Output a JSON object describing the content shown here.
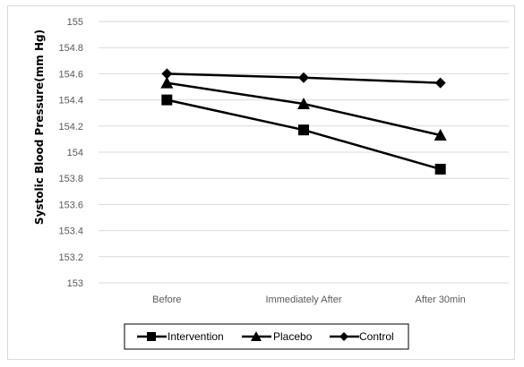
{
  "chart_data": {
    "type": "line",
    "title": "",
    "xlabel": "",
    "ylabel": "Systolic Blood Pressure(mm Hg)",
    "categories": [
      "Before",
      "Immediately After",
      "After 30min"
    ],
    "ylim": [
      153,
      155
    ],
    "yticks": [
      "155",
      "154.8",
      "154.6",
      "154.4",
      "154.2",
      "154",
      "153.8",
      "153.6",
      "153.4",
      "153.2",
      "153"
    ],
    "grid": true,
    "legend_position": "bottom",
    "series": [
      {
        "name": "Intervention",
        "marker": "square",
        "values": [
          154.4,
          154.17,
          153.87
        ]
      },
      {
        "name": "Placebo",
        "marker": "triangle",
        "values": [
          154.53,
          154.37,
          154.13
        ]
      },
      {
        "name": "Control",
        "marker": "diamond",
        "values": [
          154.6,
          154.57,
          154.53
        ]
      }
    ],
    "colors": {
      "series": "#000000",
      "grid": "#d9d9d9",
      "tick": "#595959"
    }
  }
}
